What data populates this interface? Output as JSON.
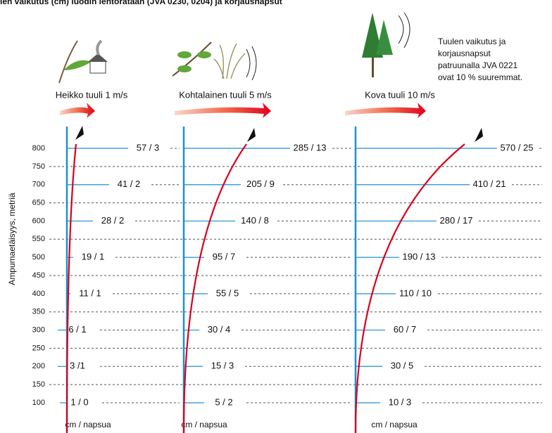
{
  "title": "ien vaikutus (cm) luodin lentorataan (JVA 0230, 0204) ja korjausnapsut",
  "note": [
    "Tuulen vaikutus ja",
    "korjausnapsut",
    "patruunalla JVA 0221",
    "ovat 10 % suuremmat."
  ],
  "y_axis_label": "Ampumaetäisyys, metriä",
  "range_ticks": [
    800,
    750,
    700,
    650,
    600,
    550,
    500,
    450,
    400,
    350,
    300,
    250,
    200,
    150,
    100
  ],
  "panels": [
    {
      "wind": "Heikko tuuli 1 m/s",
      "unit": "cm / napsua",
      "rows": [
        "57 / 3",
        "41 / 2",
        "28 / 2",
        "19 / 1",
        "11 / 1",
        "6 / 1",
        "3 /1",
        "1 / 0"
      ]
    },
    {
      "wind": "Kohtalainen tuuli 5 m/s",
      "unit": "cm / napsua",
      "rows": [
        "285 / 13",
        "205 / 9",
        "140 / 8",
        "95 / 7",
        "55 / 5",
        "30 / 4",
        "15 / 3",
        "5 / 2"
      ]
    },
    {
      "wind": "Kova tuuli 10 m/s",
      "unit": "cm / napsua",
      "rows": [
        "570 / 25",
        "410 / 21",
        "280 / 17",
        "190 / 13",
        "110 / 10",
        "60 / 7",
        "30 / 5",
        "10 / 3"
      ]
    }
  ]
}
